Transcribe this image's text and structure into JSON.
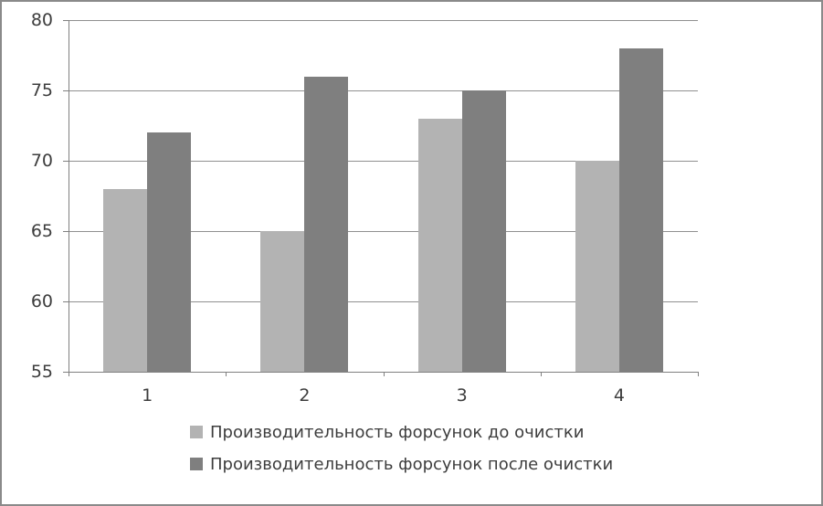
{
  "window": {
    "background": "#ffffff",
    "border_color": "#8a8a8a"
  },
  "chart_data": {
    "type": "bar",
    "title": "",
    "xlabel": "",
    "ylabel": "",
    "categories": [
      "1",
      "2",
      "3",
      "4"
    ],
    "series": [
      {
        "name": "Производительность форсунок до очистки",
        "color": "#b3b3b3",
        "values": [
          68,
          65,
          73,
          70
        ]
      },
      {
        "name": "Производительность форсунок после очистки",
        "color": "#7f7f7f",
        "values": [
          72,
          76,
          75,
          78
        ]
      }
    ],
    "ylim": [
      55,
      80
    ],
    "yticks": [
      55,
      60,
      65,
      70,
      75,
      80
    ],
    "grid": true,
    "legend_position": "bottom",
    "colors": {
      "gridline": "#909090",
      "axis": "#808080",
      "text": "#3d3d3d"
    }
  }
}
